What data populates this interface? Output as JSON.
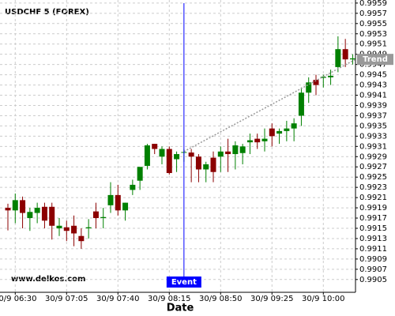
{
  "chart_data": {
    "type": "candlestick",
    "title": "USDCHF 5 (FOREX)",
    "watermark": "www.delkos.com",
    "x_label": "Date",
    "categories": [
      null,
      "30/9 06:30",
      null,
      null,
      null,
      null,
      null,
      null,
      "30/9 07:05",
      null,
      null,
      null,
      null,
      null,
      null,
      "30/9 07:40",
      null,
      null,
      null,
      null,
      null,
      null,
      "30/9 08:15",
      null,
      null,
      null,
      null,
      null,
      null,
      "30/9 08:50",
      null,
      null,
      null,
      null,
      null,
      null,
      "30/9 09:25",
      null,
      null,
      null,
      null,
      null,
      null,
      "30/9 10:00",
      null,
      null,
      null,
      null
    ],
    "open": [
      0.9919,
      0.99185,
      0.99205,
      0.9917,
      0.9918,
      0.99192,
      0.99192,
      0.9915,
      0.99152,
      0.99155,
      0.99135,
      0.9915,
      0.99183,
      0.9917,
      0.99195,
      0.99215,
      0.99185,
      0.99225,
      0.99243,
      0.99272,
      0.99315,
      0.9929,
      0.99305,
      0.99285,
      0.99298,
      0.99298,
      0.9929,
      0.99265,
      0.99288,
      0.9929,
      0.993,
      0.99295,
      0.99297,
      0.99318,
      0.99325,
      0.9932,
      0.99345,
      0.99335,
      0.9934,
      0.99345,
      0.9937,
      0.99415,
      0.9944,
      0.99444,
      0.99445,
      0.99465,
      0.995,
      0.9948
    ],
    "high": [
      0.99198,
      0.99218,
      0.99212,
      0.9919,
      0.992,
      0.992,
      0.992,
      0.9917,
      0.99165,
      0.99175,
      0.9915,
      0.99168,
      0.992,
      0.9919,
      0.9924,
      0.99235,
      0.992,
      0.99245,
      0.99265,
      0.99315,
      0.99315,
      0.9931,
      0.9931,
      0.993,
      0.99305,
      0.99305,
      0.99295,
      0.9928,
      0.993,
      0.9931,
      0.99325,
      0.9932,
      0.99315,
      0.99335,
      0.99335,
      0.99345,
      0.99355,
      0.99345,
      0.9936,
      0.99365,
      0.99425,
      0.99445,
      0.9945,
      0.9945,
      0.9946,
      0.99525,
      0.9952,
      0.9949
    ],
    "low": [
      0.99146,
      0.9916,
      0.9915,
      0.99145,
      0.9916,
      0.9915,
      0.99128,
      0.99135,
      0.99125,
      0.99115,
      0.9911,
      0.9913,
      0.9915,
      0.9915,
      0.9918,
      0.99175,
      0.99165,
      0.99215,
      0.99225,
      0.99265,
      0.99295,
      0.99275,
      0.99255,
      0.9926,
      0.9928,
      0.9924,
      0.9924,
      0.9924,
      0.9924,
      0.9926,
      0.9926,
      0.99265,
      0.99275,
      0.99295,
      0.99305,
      0.993,
      0.9931,
      0.99315,
      0.9932,
      0.9932,
      0.9935,
      0.99395,
      0.9941,
      0.99425,
      0.9943,
      0.99455,
      0.99465,
      0.9947
    ],
    "close": [
      0.99185,
      0.99205,
      0.9918,
      0.99182,
      0.9919,
      0.99165,
      0.99155,
      0.99155,
      0.99145,
      0.9914,
      0.99125,
      0.99152,
      0.9917,
      0.99172,
      0.99215,
      0.99185,
      0.992,
      0.99235,
      0.9927,
      0.99312,
      0.99305,
      0.99305,
      0.99258,
      0.99295,
      0.99299,
      0.9929,
      0.99265,
      0.99275,
      0.9926,
      0.993,
      0.99295,
      0.99312,
      0.9931,
      0.99322,
      0.99318,
      0.99325,
      0.9933,
      0.9934,
      0.99345,
      0.99355,
      0.99415,
      0.99435,
      0.9943,
      0.99446,
      0.99448,
      0.995,
      0.9948,
      0.99482
    ],
    "up_color": "#008000",
    "down_color": "#8b0000",
    "ylim": [
      0.99025,
      0.99596
    ],
    "yticks": [
      0.9905,
      0.9907,
      0.9909,
      0.9911,
      0.9913,
      0.9915,
      0.9917,
      0.9919,
      0.9921,
      0.9923,
      0.9925,
      0.9927,
      0.9929,
      0.9931,
      0.9933,
      0.9935,
      0.9937,
      0.9939,
      0.9941,
      0.9943,
      0.9945,
      0.9947,
      0.9949,
      0.9951,
      0.9953,
      0.9955,
      0.9957,
      0.9959
    ],
    "grid": true,
    "event": {
      "label": "Event",
      "index": 24,
      "color": "#0000ff"
    },
    "trend": {
      "label": "Trend",
      "start_index": 24,
      "start": 0.993,
      "end": 0.9948,
      "color": "#999999"
    }
  }
}
